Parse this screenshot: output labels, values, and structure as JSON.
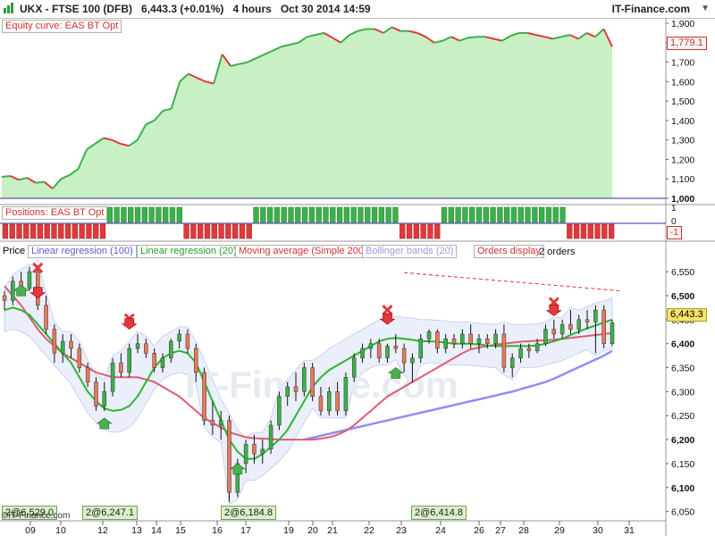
{
  "header": {
    "instrument": "UKX - FTSE 100 (DFB)",
    "price": "6,443.3 (+0.01%)",
    "timeframe": "4 hours",
    "datetime": "Oct 30 2014 14:59",
    "brand": "IT-Finance.com"
  },
  "panels": {
    "equity": {
      "label": "Equity curve: EAS BT Opt",
      "last_value_label": "1,779.1"
    },
    "positions": {
      "label": "Positions: EAS BT Opt",
      "last_value_label": "-1"
    },
    "price": {
      "label": "Price",
      "indicators": [
        "Linear regression (100)",
        "Linear regression (20)",
        "Moving average (Simple 200)",
        "Bollinger bands (20)",
        "Orders display"
      ],
      "last_price_label": "6,443.3",
      "annotation": "2 orders",
      "watermark": "IT-Finance.com"
    }
  },
  "order_tags": [
    "2@6,529.0",
    "2@6,247.1",
    "2@6,184.8",
    "2@6,414.8"
  ],
  "footer_brand": "©IT-Finance.com",
  "colors": {
    "up": "#3cb04a",
    "down": "#e8785a",
    "equity_fill": "#c8f0c4",
    "equity_line_up": "#3cb04a",
    "equity_line_down": "#e0393c",
    "lr20": "#2eb52e",
    "sma200": "#e05b73",
    "lr100": "#8f8ff5",
    "bb_fill": "#e8eefb",
    "signal_down": "#e0393c",
    "signal_up": "#4cb050"
  },
  "chart_data": [
    {
      "type": "area",
      "title": "Equity curve: EAS BT Opt",
      "yticks": [
        "1,900",
        "1,800",
        "1,700",
        "1,600",
        "1,500",
        "1,400",
        "1,300",
        "1,200",
        "1,100",
        "1,000"
      ],
      "ylim": [
        1000,
        1900
      ],
      "values": [
        1110,
        1115,
        1095,
        1105,
        1080,
        1085,
        1050,
        1100,
        1120,
        1150,
        1250,
        1280,
        1310,
        1300,
        1280,
        1270,
        1300,
        1380,
        1400,
        1450,
        1460,
        1600,
        1640,
        1620,
        1600,
        1590,
        1740,
        1680,
        1690,
        1700,
        1720,
        1740,
        1760,
        1780,
        1790,
        1800,
        1830,
        1840,
        1850,
        1825,
        1800,
        1840,
        1860,
        1870,
        1870,
        1850,
        1880,
        1860,
        1860,
        1850,
        1830,
        1800,
        1810,
        1830,
        1810,
        1825,
        1830,
        1830,
        1820,
        1810,
        1835,
        1850,
        1850,
        1840,
        1830,
        1820,
        1830,
        1840,
        1820,
        1850,
        1830,
        1870,
        1779.1
      ]
    },
    {
      "type": "bar",
      "title": "Positions: EAS BT Opt",
      "yticks": [
        "1",
        "0",
        "-1"
      ],
      "segments": [
        {
          "from_bar": 0,
          "to_bar": 15,
          "value": -1
        },
        {
          "from_bar": 15,
          "to_bar": 26,
          "value": 1
        },
        {
          "from_bar": 26,
          "to_bar": 36,
          "value": -1
        },
        {
          "from_bar": 36,
          "to_bar": 57,
          "value": 1
        },
        {
          "from_bar": 57,
          "to_bar": 63,
          "value": -1
        },
        {
          "from_bar": 63,
          "to_bar": 81,
          "value": 1
        },
        {
          "from_bar": 81,
          "to_bar": 88,
          "value": -1
        }
      ]
    },
    {
      "type": "candlestick",
      "title": "Price",
      "xticks": [
        "09",
        "10",
        "12",
        "13",
        "14",
        "15",
        "16",
        "17",
        "19",
        "20",
        "21",
        "22",
        "23",
        "24",
        "26",
        "27",
        "28",
        "29",
        "30",
        "31"
      ],
      "yticks": [
        "6,550",
        "6,500",
        "6,450",
        "6,400",
        "6,350",
        "6,300",
        "6,250",
        "6,200",
        "6,150",
        "6,100",
        "6,050"
      ],
      "ylim": [
        6040,
        6580
      ],
      "candles": [
        [
          6500,
          6510,
          6470,
          6490
        ],
        [
          6490,
          6540,
          6480,
          6530
        ],
        [
          6530,
          6550,
          6500,
          6515
        ],
        [
          6515,
          6560,
          6510,
          6550
        ],
        [
          6550,
          6560,
          6470,
          6480
        ],
        [
          6480,
          6500,
          6420,
          6430
        ],
        [
          6430,
          6440,
          6360,
          6380
        ],
        [
          6380,
          6420,
          6360,
          6405
        ],
        [
          6405,
          6420,
          6370,
          6390
        ],
        [
          6390,
          6400,
          6340,
          6350
        ],
        [
          6350,
          6360,
          6310,
          6320
        ],
        [
          6320,
          6330,
          6260,
          6270
        ],
        [
          6270,
          6320,
          6260,
          6300
        ],
        [
          6300,
          6370,
          6290,
          6360
        ],
        [
          6360,
          6380,
          6330,
          6340
        ],
        [
          6340,
          6400,
          6330,
          6390
        ],
        [
          6390,
          6420,
          6380,
          6400
        ],
        [
          6400,
          6410,
          6370,
          6380
        ],
        [
          6380,
          6390,
          6340,
          6350
        ],
        [
          6350,
          6380,
          6340,
          6370
        ],
        [
          6370,
          6410,
          6360,
          6405
        ],
        [
          6405,
          6430,
          6390,
          6420
        ],
        [
          6420,
          6430,
          6380,
          6390
        ],
        [
          6390,
          6400,
          6320,
          6340
        ],
        [
          6340,
          6350,
          6230,
          6240
        ],
        [
          6240,
          6280,
          6210,
          6230
        ],
        [
          6230,
          6260,
          6200,
          6240
        ],
        [
          6240,
          6250,
          6070,
          6090
        ],
        [
          6090,
          6160,
          6080,
          6150
        ],
        [
          6150,
          6200,
          6130,
          6190
        ],
        [
          6190,
          6210,
          6150,
          6170
        ],
        [
          6170,
          6200,
          6150,
          6180
        ],
        [
          6180,
          6240,
          6170,
          6230
        ],
        [
          6230,
          6300,
          6220,
          6290
        ],
        [
          6290,
          6320,
          6270,
          6310
        ],
        [
          6310,
          6340,
          6280,
          6300
        ],
        [
          6300,
          6360,
          6290,
          6350
        ],
        [
          6350,
          6360,
          6280,
          6290
        ],
        [
          6290,
          6310,
          6250,
          6260
        ],
        [
          6260,
          6310,
          6250,
          6300
        ],
        [
          6300,
          6320,
          6250,
          6260
        ],
        [
          6260,
          6340,
          6250,
          6330
        ],
        [
          6330,
          6380,
          6320,
          6370
        ],
        [
          6370,
          6400,
          6360,
          6390
        ],
        [
          6390,
          6410,
          6370,
          6400
        ],
        [
          6400,
          6410,
          6360,
          6370
        ],
        [
          6370,
          6400,
          6360,
          6395
        ],
        [
          6395,
          6420,
          6380,
          6390
        ],
        [
          6390,
          6400,
          6340,
          6360
        ],
        [
          6360,
          6380,
          6320,
          6370
        ],
        [
          6370,
          6420,
          6360,
          6410
        ],
        [
          6410,
          6430,
          6400,
          6425
        ],
        [
          6425,
          6430,
          6380,
          6390
        ],
        [
          6390,
          6420,
          6380,
          6410
        ],
        [
          6410,
          6420,
          6390,
          6400
        ],
        [
          6400,
          6430,
          6390,
          6420
        ],
        [
          6420,
          6440,
          6390,
          6400
        ],
        [
          6400,
          6420,
          6380,
          6410
        ],
        [
          6410,
          6420,
          6390,
          6400
        ],
        [
          6400,
          6430,
          6390,
          6420
        ],
        [
          6420,
          6440,
          6340,
          6350
        ],
        [
          6350,
          6380,
          6330,
          6370
        ],
        [
          6370,
          6400,
          6360,
          6390
        ],
        [
          6390,
          6400,
          6370,
          6385
        ],
        [
          6385,
          6410,
          6380,
          6400
        ],
        [
          6400,
          6440,
          6395,
          6430
        ],
        [
          6430,
          6450,
          6410,
          6420
        ],
        [
          6420,
          6450,
          6410,
          6440
        ],
        [
          6440,
          6470,
          6420,
          6430
        ],
        [
          6430,
          6460,
          6420,
          6450
        ],
        [
          6450,
          6470,
          6430,
          6445
        ],
        [
          6445,
          6480,
          6380,
          6470
        ],
        [
          6470,
          6480,
          6390,
          6400
        ],
        [
          6400,
          6450,
          6395,
          6443.3
        ]
      ],
      "lr20": [
        6470,
        6475,
        6470,
        6460,
        6440,
        6420,
        6400,
        6380,
        6360,
        6330,
        6300,
        6280,
        6265,
        6260,
        6262,
        6270,
        6290,
        6320,
        6350,
        6370,
        6380,
        6385,
        6380,
        6360,
        6320,
        6280,
        6240,
        6200,
        6175,
        6160,
        6160,
        6170,
        6185,
        6200,
        6220,
        6250,
        6280,
        6310,
        6330,
        6345,
        6355,
        6365,
        6375,
        6385,
        6395,
        6405,
        6410,
        6412,
        6410,
        6408,
        6405,
        6405,
        6404,
        6402,
        6400,
        6400,
        6400,
        6398,
        6396,
        6395,
        6395,
        6395,
        6395,
        6395,
        6396,
        6400,
        6405,
        6410,
        6418,
        6425,
        6432,
        6438,
        6444,
        6450
      ],
      "sma200": [
        6520,
        6500,
        6480,
        6455,
        6430,
        6410,
        6395,
        6380,
        6370,
        6360,
        6350,
        6340,
        6335,
        6330,
        6330,
        6330,
        6330,
        6325,
        6320,
        6310,
        6300,
        6290,
        6275,
        6260,
        6245,
        6235,
        6225,
        6215,
        6210,
        6205,
        6203,
        6202,
        6201,
        6200,
        6200,
        6200,
        6200,
        6200,
        6202,
        6205,
        6210,
        6218,
        6230,
        6245,
        6260,
        6275,
        6290,
        6300,
        6310,
        6320,
        6330,
        6340,
        6350,
        6360,
        6370,
        6380,
        6388,
        6392,
        6395,
        6398,
        6400,
        6402,
        6404,
        6405,
        6406,
        6407,
        6408,
        6410,
        6412,
        6414,
        6416,
        6418,
        6420,
        6422
      ],
      "lr100": [
        null,
        null,
        null,
        null,
        null,
        null,
        null,
        null,
        null,
        null,
        null,
        null,
        null,
        null,
        null,
        null,
        null,
        null,
        null,
        null,
        null,
        null,
        null,
        null,
        null,
        null,
        null,
        null,
        null,
        null,
        null,
        null,
        null,
        null,
        null,
        null,
        6200,
        6204,
        6208,
        6212,
        6216,
        6220,
        6224,
        6228,
        6232,
        6236,
        6240,
        6244,
        6248,
        6252,
        6256,
        6260,
        6264,
        6268,
        6272,
        6276,
        6280,
        6284,
        6288,
        6292,
        6296,
        6300,
        6305,
        6310,
        6315,
        6320,
        6327,
        6335,
        6343,
        6351,
        6359,
        6367,
        6375,
        6385
      ]
    }
  ]
}
